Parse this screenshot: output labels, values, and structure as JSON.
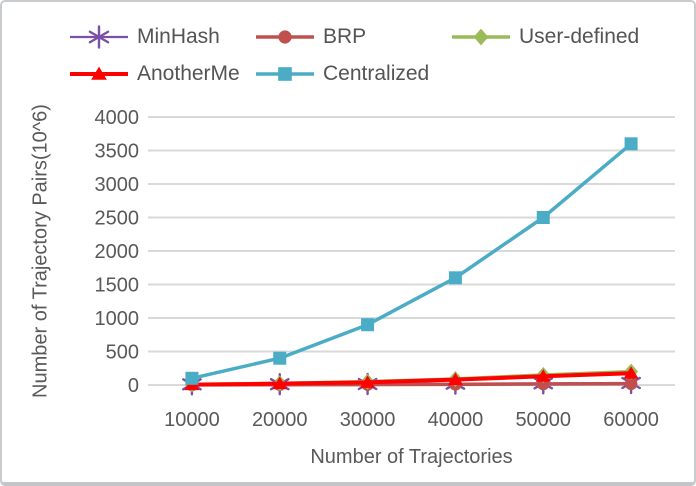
{
  "panel": {
    "background": "#ffffff",
    "border_color": "#c9cccf",
    "text_color": "#595959",
    "gridline_color": "#d9d9d9"
  },
  "chart_data": {
    "type": "line",
    "title": "",
    "xlabel": "Number of Trajectories",
    "ylabel": "Number of Trajectory Pairs(10^6)",
    "categories": [
      "10000",
      "20000",
      "30000",
      "40000",
      "50000",
      "60000"
    ],
    "y_ticks": [
      "0",
      "500",
      "1000",
      "1500",
      "2000",
      "2500",
      "3000",
      "3500",
      "4000"
    ],
    "ylim": [
      0,
      4000
    ],
    "grid": "horizontal",
    "legend_position": "top",
    "series": [
      {
        "name": "MinHash",
        "color": "#7b51a5",
        "marker": "asterisk",
        "line_width": 2.2,
        "values": [
          10,
          12,
          15,
          20,
          25,
          30
        ]
      },
      {
        "name": "BRP",
        "color": "#c0504d",
        "marker": "circle",
        "line_width": 3.5,
        "values": [
          2,
          4,
          6,
          10,
          14,
          18
        ]
      },
      {
        "name": "User-defined",
        "color": "#9bbb59",
        "marker": "diamond",
        "line_width": 3.5,
        "values": [
          10,
          25,
          50,
          90,
          150,
          200
        ]
      },
      {
        "name": "AnotherMe",
        "color": "#fe0000",
        "marker": "triangle",
        "line_width": 4,
        "values": [
          5,
          20,
          40,
          80,
          130,
          175
        ]
      },
      {
        "name": "Centralized",
        "color": "#4bacc6",
        "marker": "square",
        "line_width": 3.5,
        "values": [
          100,
          400,
          900,
          1600,
          2500,
          3600
        ]
      }
    ]
  }
}
